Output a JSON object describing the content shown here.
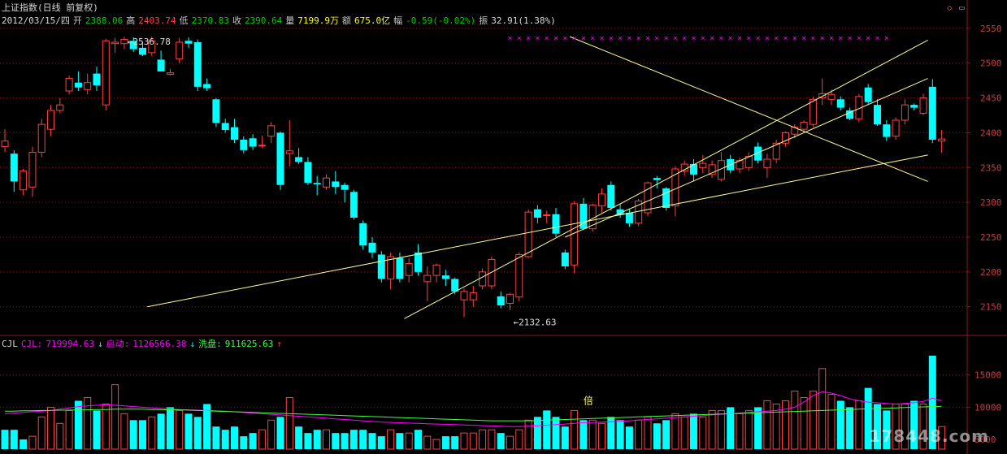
{
  "header": {
    "title": "上证指数(日线 前复权)",
    "date": "2012/03/15/四",
    "open_label": "开",
    "open": "2388.06",
    "high_label": "高",
    "high": "2403.74",
    "low_label": "低",
    "low": "2370.83",
    "close_label": "收",
    "close": "2390.64",
    "volume_label": "量",
    "volume": "7199.9万",
    "amount_label": "额",
    "amount": "675.0亿",
    "change_label": "幅",
    "change": "-0.59(-0.02%)",
    "amplitude_label": "振",
    "amplitude": "32.91(1.38%)"
  },
  "volume_header": {
    "name": "CJL",
    "cjl_label": "CJL:",
    "cjl_value": "719994.63",
    "qidong_label": "启动:",
    "qidong_value": "1126566.38",
    "xipan_label": "洗盘:",
    "xipan_value": "911625.63"
  },
  "annotations": {
    "high_marker": "2536.78",
    "low_marker": "2132.63",
    "volume_marker": "倍"
  },
  "icons": {
    "diamond": "diamond-icon",
    "scroll": "scroll-up-icon"
  },
  "watermark": "178448.com",
  "colors": {
    "background": "#000000",
    "up": "#ff4040",
    "down": "#00ffff",
    "grid": "#8b1a1a",
    "trendline": "#ffff99",
    "ma_magenta": "#ff00ff",
    "ma_green": "#40ff40",
    "axis_text": "#c04040"
  },
  "chart_data": [
    {
      "type": "candlestick",
      "title": "上证指数(日线 前复权)",
      "ylim": [
        2110,
        2565
      ],
      "yticks": [
        2150,
        2200,
        2250,
        2300,
        2350,
        2400,
        2450,
        2500,
        2550
      ],
      "candles": [
        {
          "o": 2380,
          "h": 2405,
          "l": 2372,
          "c": 2388
        },
        {
          "o": 2370,
          "h": 2375,
          "l": 2315,
          "c": 2330
        },
        {
          "o": 2318,
          "h": 2348,
          "l": 2310,
          "c": 2345
        },
        {
          "o": 2322,
          "h": 2380,
          "l": 2308,
          "c": 2372
        },
        {
          "o": 2372,
          "h": 2420,
          "l": 2365,
          "c": 2412
        },
        {
          "o": 2405,
          "h": 2440,
          "l": 2395,
          "c": 2432
        },
        {
          "o": 2432,
          "h": 2450,
          "l": 2428,
          "c": 2440
        },
        {
          "o": 2460,
          "h": 2482,
          "l": 2455,
          "c": 2478
        },
        {
          "o": 2472,
          "h": 2488,
          "l": 2460,
          "c": 2465
        },
        {
          "o": 2462,
          "h": 2485,
          "l": 2455,
          "c": 2472
        },
        {
          "o": 2485,
          "h": 2495,
          "l": 2460,
          "c": 2468
        },
        {
          "o": 2440,
          "h": 2535,
          "l": 2432,
          "c": 2532
        },
        {
          "o": 2528,
          "h": 2536,
          "l": 2515,
          "c": 2530
        },
        {
          "o": 2528,
          "h": 2538,
          "l": 2520,
          "c": 2534
        },
        {
          "o": 2532,
          "h": 2537,
          "l": 2516,
          "c": 2520
        },
        {
          "o": 2522,
          "h": 2530,
          "l": 2510,
          "c": 2512
        },
        {
          "o": 2515,
          "h": 2538,
          "l": 2510,
          "c": 2532
        },
        {
          "o": 2505,
          "h": 2518,
          "l": 2488,
          "c": 2488
        },
        {
          "o": 2484,
          "h": 2492,
          "l": 2482,
          "c": 2486
        },
        {
          "o": 2506,
          "h": 2536,
          "l": 2500,
          "c": 2530
        },
        {
          "o": 2532,
          "h": 2537,
          "l": 2522,
          "c": 2528
        },
        {
          "o": 2530,
          "h": 2534,
          "l": 2460,
          "c": 2466
        },
        {
          "o": 2470,
          "h": 2478,
          "l": 2460,
          "c": 2464
        },
        {
          "o": 2448,
          "h": 2450,
          "l": 2408,
          "c": 2414
        },
        {
          "o": 2414,
          "h": 2420,
          "l": 2400,
          "c": 2404
        },
        {
          "o": 2408,
          "h": 2420,
          "l": 2385,
          "c": 2390
        },
        {
          "o": 2390,
          "h": 2395,
          "l": 2370,
          "c": 2375
        },
        {
          "o": 2392,
          "h": 2398,
          "l": 2375,
          "c": 2380
        },
        {
          "o": 2382,
          "h": 2396,
          "l": 2378,
          "c": 2382
        },
        {
          "o": 2395,
          "h": 2415,
          "l": 2385,
          "c": 2410
        },
        {
          "o": 2400,
          "h": 2402,
          "l": 2318,
          "c": 2325
        },
        {
          "o": 2370,
          "h": 2418,
          "l": 2352,
          "c": 2374
        },
        {
          "o": 2365,
          "h": 2378,
          "l": 2355,
          "c": 2358
        },
        {
          "o": 2358,
          "h": 2365,
          "l": 2325,
          "c": 2328
        },
        {
          "o": 2328,
          "h": 2338,
          "l": 2310,
          "c": 2326
        },
        {
          "o": 2322,
          "h": 2340,
          "l": 2318,
          "c": 2335
        },
        {
          "o": 2330,
          "h": 2345,
          "l": 2312,
          "c": 2322
        },
        {
          "o": 2325,
          "h": 2328,
          "l": 2300,
          "c": 2318
        },
        {
          "o": 2315,
          "h": 2318,
          "l": 2275,
          "c": 2278
        },
        {
          "o": 2270,
          "h": 2274,
          "l": 2232,
          "c": 2238
        },
        {
          "o": 2242,
          "h": 2250,
          "l": 2220,
          "c": 2228
        },
        {
          "o": 2225,
          "h": 2230,
          "l": 2185,
          "c": 2190
        },
        {
          "o": 2190,
          "h": 2228,
          "l": 2175,
          "c": 2222
        },
        {
          "o": 2220,
          "h": 2228,
          "l": 2185,
          "c": 2190
        },
        {
          "o": 2195,
          "h": 2220,
          "l": 2185,
          "c": 2212
        },
        {
          "o": 2228,
          "h": 2240,
          "l": 2195,
          "c": 2200
        },
        {
          "o": 2186,
          "h": 2208,
          "l": 2158,
          "c": 2195
        },
        {
          "o": 2195,
          "h": 2212,
          "l": 2185,
          "c": 2210
        },
        {
          "o": 2195,
          "h": 2203,
          "l": 2180,
          "c": 2190
        },
        {
          "o": 2190,
          "h": 2192,
          "l": 2168,
          "c": 2172
        },
        {
          "o": 2160,
          "h": 2176,
          "l": 2135,
          "c": 2172
        },
        {
          "o": 2160,
          "h": 2180,
          "l": 2150,
          "c": 2170
        },
        {
          "o": 2180,
          "h": 2205,
          "l": 2175,
          "c": 2200
        },
        {
          "o": 2180,
          "h": 2222,
          "l": 2175,
          "c": 2218
        },
        {
          "o": 2165,
          "h": 2172,
          "l": 2148,
          "c": 2152
        },
        {
          "o": 2155,
          "h": 2170,
          "l": 2145,
          "c": 2168
        },
        {
          "o": 2164,
          "h": 2228,
          "l": 2158,
          "c": 2225
        },
        {
          "o": 2222,
          "h": 2290,
          "l": 2220,
          "c": 2286
        },
        {
          "o": 2290,
          "h": 2296,
          "l": 2270,
          "c": 2278
        },
        {
          "o": 2282,
          "h": 2288,
          "l": 2270,
          "c": 2282
        },
        {
          "o": 2283,
          "h": 2292,
          "l": 2250,
          "c": 2255
        },
        {
          "o": 2228,
          "h": 2232,
          "l": 2204,
          "c": 2208
        },
        {
          "o": 2210,
          "h": 2302,
          "l": 2198,
          "c": 2298
        },
        {
          "o": 2298,
          "h": 2306,
          "l": 2260,
          "c": 2262
        },
        {
          "o": 2262,
          "h": 2298,
          "l": 2258,
          "c": 2296
        },
        {
          "o": 2295,
          "h": 2320,
          "l": 2285,
          "c": 2312
        },
        {
          "o": 2325,
          "h": 2330,
          "l": 2288,
          "c": 2292
        },
        {
          "o": 2290,
          "h": 2298,
          "l": 2278,
          "c": 2282
        },
        {
          "o": 2285,
          "h": 2290,
          "l": 2265,
          "c": 2270
        },
        {
          "o": 2270,
          "h": 2305,
          "l": 2266,
          "c": 2302
        },
        {
          "o": 2285,
          "h": 2330,
          "l": 2280,
          "c": 2328
        },
        {
          "o": 2335,
          "h": 2338,
          "l": 2320,
          "c": 2332
        },
        {
          "o": 2320,
          "h": 2322,
          "l": 2288,
          "c": 2292
        },
        {
          "o": 2295,
          "h": 2352,
          "l": 2280,
          "c": 2348
        },
        {
          "o": 2345,
          "h": 2360,
          "l": 2338,
          "c": 2355
        },
        {
          "o": 2355,
          "h": 2362,
          "l": 2330,
          "c": 2340
        },
        {
          "o": 2350,
          "h": 2368,
          "l": 2342,
          "c": 2356
        },
        {
          "o": 2340,
          "h": 2360,
          "l": 2335,
          "c": 2354
        },
        {
          "o": 2333,
          "h": 2372,
          "l": 2330,
          "c": 2360
        },
        {
          "o": 2362,
          "h": 2368,
          "l": 2342,
          "c": 2346
        },
        {
          "o": 2348,
          "h": 2364,
          "l": 2342,
          "c": 2360
        },
        {
          "o": 2350,
          "h": 2372,
          "l": 2345,
          "c": 2366
        },
        {
          "o": 2380,
          "h": 2386,
          "l": 2356,
          "c": 2360
        },
        {
          "o": 2350,
          "h": 2370,
          "l": 2335,
          "c": 2362
        },
        {
          "o": 2362,
          "h": 2390,
          "l": 2356,
          "c": 2385
        },
        {
          "o": 2385,
          "h": 2402,
          "l": 2380,
          "c": 2400
        },
        {
          "o": 2398,
          "h": 2412,
          "l": 2392,
          "c": 2408
        },
        {
          "o": 2405,
          "h": 2418,
          "l": 2400,
          "c": 2415
        },
        {
          "o": 2412,
          "h": 2452,
          "l": 2408,
          "c": 2448
        },
        {
          "o": 2450,
          "h": 2478,
          "l": 2440,
          "c": 2456
        },
        {
          "o": 2448,
          "h": 2462,
          "l": 2440,
          "c": 2455
        },
        {
          "o": 2448,
          "h": 2452,
          "l": 2432,
          "c": 2436
        },
        {
          "o": 2432,
          "h": 2436,
          "l": 2418,
          "c": 2420
        },
        {
          "o": 2420,
          "h": 2456,
          "l": 2415,
          "c": 2452
        },
        {
          "o": 2465,
          "h": 2470,
          "l": 2440,
          "c": 2444
        },
        {
          "o": 2440,
          "h": 2448,
          "l": 2410,
          "c": 2412
        },
        {
          "o": 2412,
          "h": 2418,
          "l": 2388,
          "c": 2394
        },
        {
          "o": 2395,
          "h": 2422,
          "l": 2390,
          "c": 2418
        },
        {
          "o": 2418,
          "h": 2448,
          "l": 2412,
          "c": 2440
        },
        {
          "o": 2440,
          "h": 2442,
          "l": 2432,
          "c": 2436
        },
        {
          "o": 2428,
          "h": 2456,
          "l": 2425,
          "c": 2450
        },
        {
          "o": 2466,
          "h": 2477,
          "l": 2385,
          "c": 2390
        },
        {
          "o": 2388,
          "h": 2404,
          "l": 2371,
          "c": 2391
        }
      ],
      "ma_magenta": [
        9000,
        9100,
        9200,
        9300,
        9400,
        9500,
        9700,
        9900,
        10100,
        10200,
        10300,
        10400,
        10300,
        10200,
        10100,
        10000,
        9900,
        9800,
        9700,
        9650,
        9600,
        9550,
        9500,
        9450,
        9400,
        9300,
        9200,
        9100,
        9000,
        8900,
        8800,
        8700,
        8600,
        8500,
        8400,
        8300,
        8200,
        8100,
        8000,
        7900,
        7800,
        7700,
        7650,
        7600,
        7550,
        7500,
        7450,
        7400,
        7350,
        7300,
        7250,
        7200,
        7150,
        7100,
        7050,
        7000,
        7000,
        7050,
        7100,
        7200,
        7300,
        7400,
        7500,
        7600,
        7650,
        7700,
        7750,
        7800,
        7900,
        8000,
        8100,
        8200,
        8300,
        8400,
        8500,
        8600,
        8700,
        8800,
        8900,
        9000,
        9100,
        9200,
        9300,
        9400,
        9500,
        9700,
        10000,
        10800,
        11800,
        12400,
        12200,
        11800,
        11300,
        11000,
        10800,
        10700,
        10600,
        10500,
        10600,
        10700,
        10900,
        11400,
        11000
      ],
      "ma_green": [
        9400,
        9400,
        9450,
        9450,
        9500,
        9500,
        9550,
        9550,
        9600,
        9600,
        9650,
        9650,
        9700,
        9700,
        9700,
        9700,
        9650,
        9650,
        9600,
        9600,
        9550,
        9500,
        9450,
        9400,
        9350,
        9300,
        9250,
        9200,
        9150,
        9100,
        9050,
        9000,
        8950,
        8900,
        8850,
        8800,
        8750,
        8700,
        8650,
        8600,
        8550,
        8500,
        8450,
        8400,
        8350,
        8300,
        8250,
        8200,
        8150,
        8100,
        8050,
        8000,
        7950,
        7900,
        7900,
        7900,
        7900,
        7900,
        7950,
        8000,
        8050,
        8100,
        8150,
        8200,
        8250,
        8300,
        8350,
        8400,
        8450,
        8500,
        8550,
        8600,
        8650,
        8700,
        8750,
        8800,
        8850,
        8900,
        8950,
        9000,
        9050,
        9100,
        9150,
        9200,
        9250,
        9300,
        9350,
        9400,
        9450,
        9500,
        9550,
        9600,
        9650,
        9700,
        9750,
        9800,
        9850,
        9900,
        9950,
        10000,
        10050,
        10100,
        10150
      ],
      "trendlines": [
        {
          "from": {
            "i": 15.5,
            "v": 2150
          },
          "to": {
            "i": 100.5,
            "v": 2368
          }
        },
        {
          "from": {
            "i": 43.5,
            "v": 2133
          },
          "to": {
            "i": 100.5,
            "v": 2533
          }
        },
        {
          "from": {
            "i": 61,
            "v": 2250
          },
          "to": {
            "i": 100.5,
            "v": 2478
          }
        },
        {
          "from": {
            "i": 61.5,
            "v": 2538
          },
          "to": {
            "i": 100.5,
            "v": 2330
          }
        }
      ],
      "markers": [
        {
          "kind": "x-row",
          "value": 2537,
          "from": 55,
          "to": 96
        }
      ]
    },
    {
      "type": "bar",
      "title": "CJL",
      "ylim": [
        3500,
        19000
      ],
      "yticks": [
        5000,
        10000,
        15000
      ],
      "volumes": [
        6500,
        6500,
        5000,
        5500,
        8500,
        10000,
        7500,
        9500,
        11000,
        11500,
        9500,
        10500,
        13500,
        9000,
        8000,
        8000,
        8500,
        9000,
        10000,
        9500,
        9000,
        8500,
        10500,
        7000,
        6500,
        7000,
        5500,
        6000,
        6500,
        8000,
        8500,
        11500,
        7000,
        6000,
        6500,
        6500,
        6000,
        6000,
        6500,
        6500,
        6000,
        5500,
        6500,
        6000,
        6000,
        6500,
        5500,
        5000,
        5500,
        5500,
        6000,
        6000,
        6500,
        6500,
        6000,
        5500,
        6500,
        8000,
        8500,
        9500,
        8500,
        7000,
        9500,
        8000,
        8000,
        7500,
        8500,
        8000,
        7000,
        8000,
        8500,
        7500,
        8000,
        9000,
        8500,
        9000,
        8500,
        9500,
        9500,
        10000,
        9000,
        9500,
        10000,
        11000,
        10500,
        11000,
        12500,
        11500,
        12500,
        16000,
        12000,
        11000,
        10000,
        11000,
        13000,
        10500,
        9500,
        10500,
        10500,
        11000,
        10500,
        18000,
        7000
      ],
      "up_days": [
        false,
        false,
        false,
        true,
        true,
        true,
        true,
        true,
        false,
        true,
        false,
        true,
        true,
        true,
        false,
        false,
        true,
        false,
        false,
        true,
        false,
        false,
        false,
        false,
        false,
        false,
        false,
        false,
        true,
        true,
        false,
        true,
        false,
        false,
        false,
        true,
        false,
        false,
        false,
        false,
        false,
        false,
        true,
        false,
        true,
        false,
        true,
        true,
        false,
        false,
        true,
        true,
        true,
        true,
        false,
        true,
        true,
        true,
        false,
        false,
        false,
        false,
        true,
        false,
        true,
        true,
        false,
        false,
        false,
        true,
        true,
        false,
        false,
        true,
        true,
        false,
        true,
        true,
        true,
        false,
        true,
        true,
        false,
        true,
        true,
        true,
        true,
        true,
        true,
        true,
        true,
        false,
        false,
        true,
        false,
        false,
        false,
        true,
        true,
        false,
        true,
        false,
        true
      ]
    }
  ]
}
